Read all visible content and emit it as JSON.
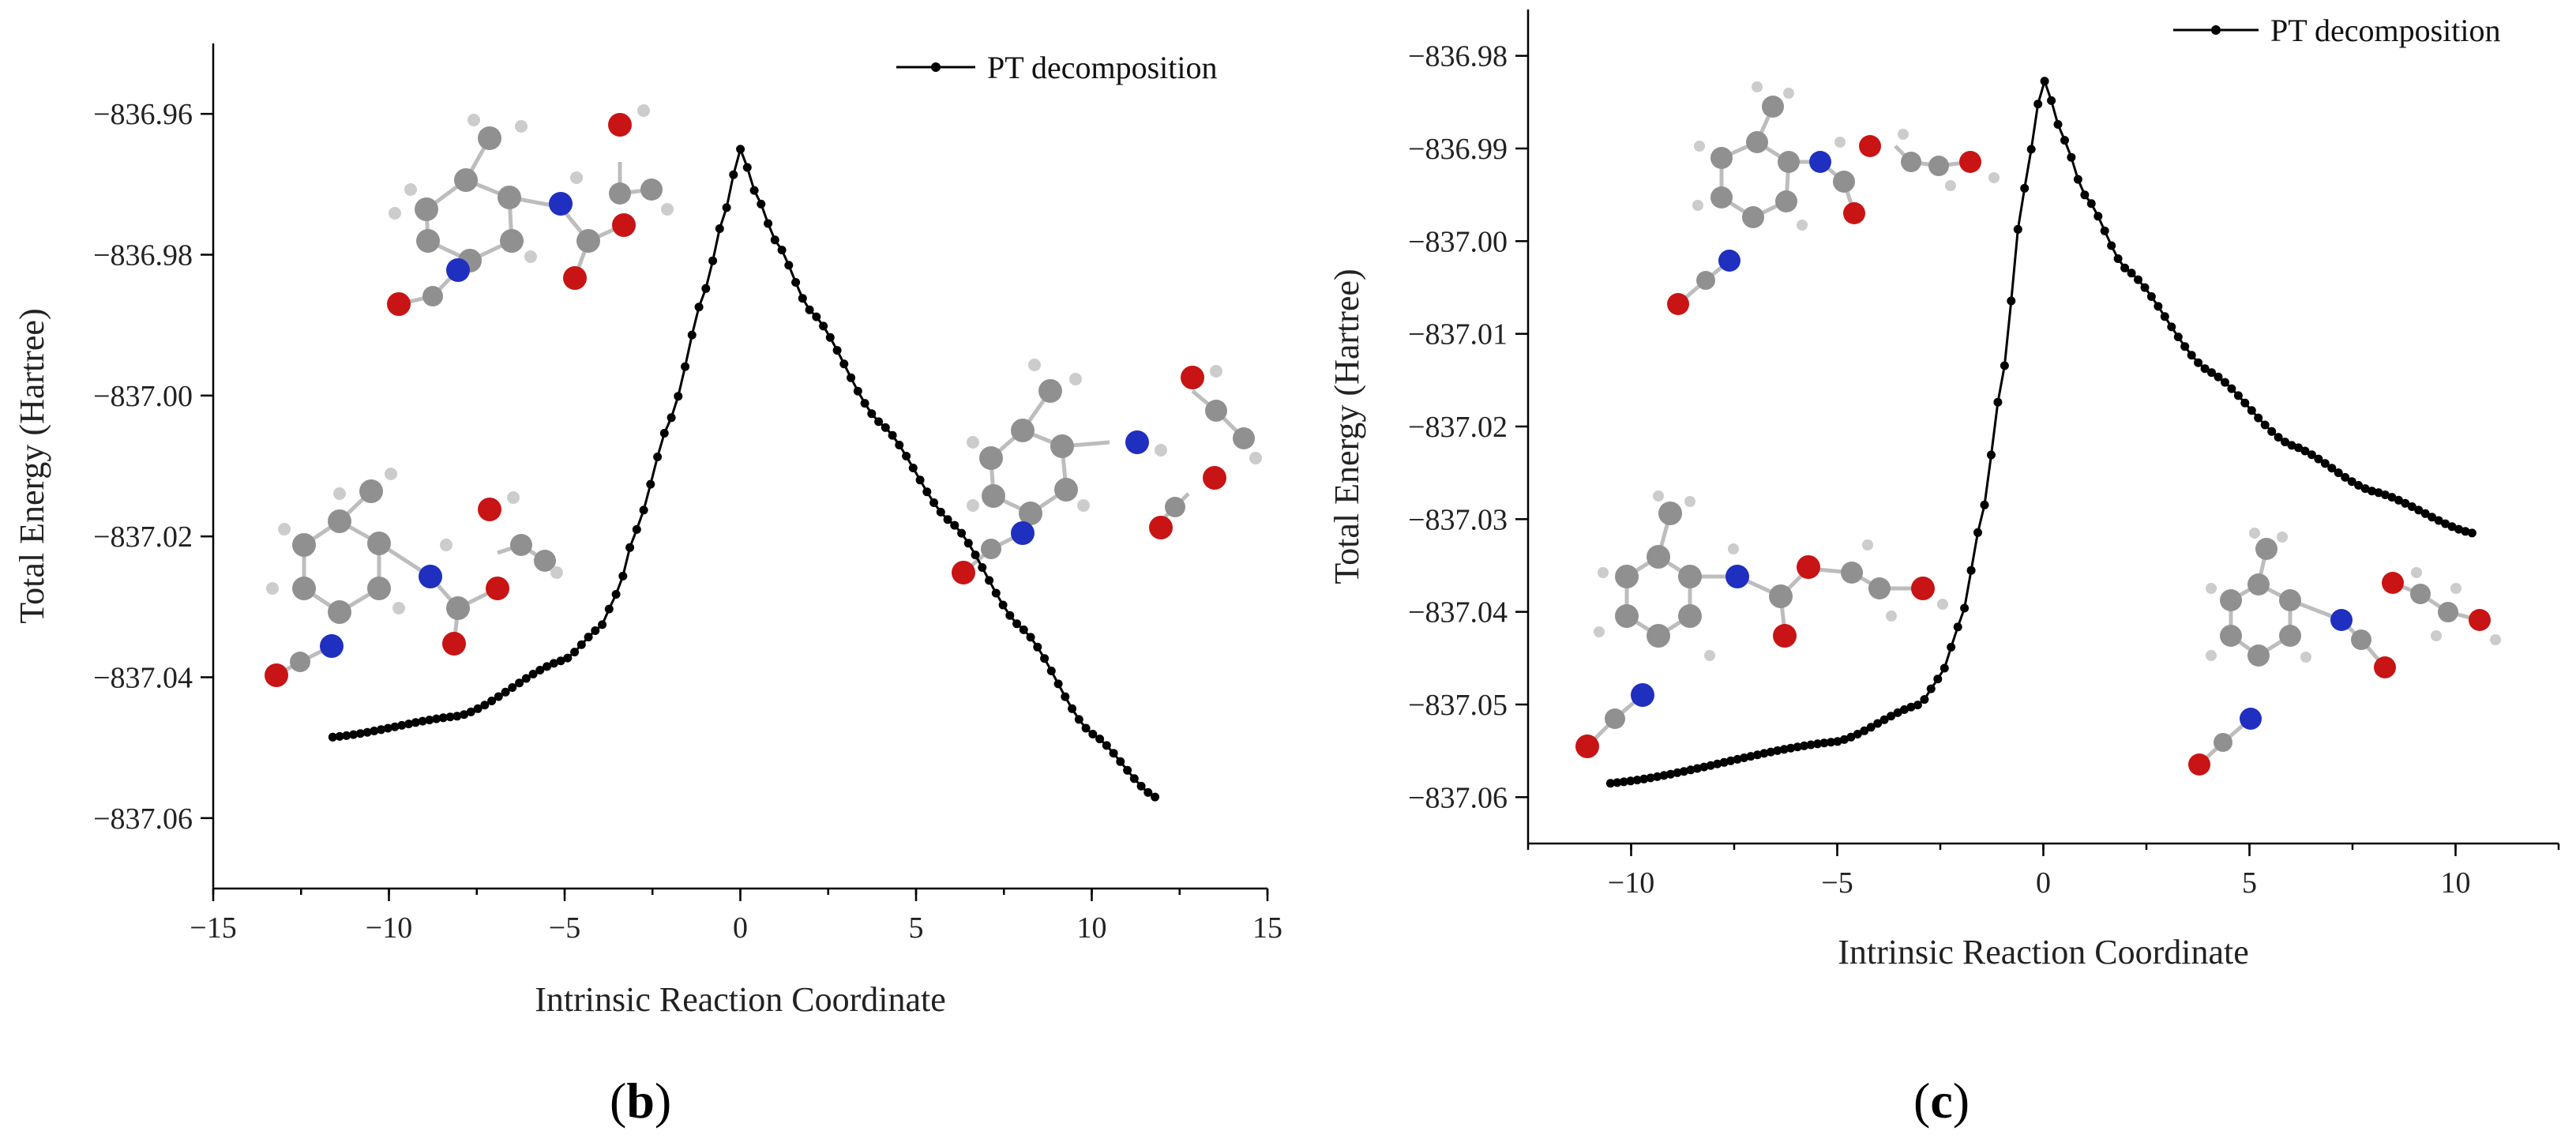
{
  "chart_data": [
    {
      "panel": "b",
      "type": "line",
      "title": "",
      "xlabel": "Intrinsic Reaction Coordinate",
      "ylabel": "Total Energy (Hartree)",
      "xlim": [
        -15,
        15
      ],
      "ylim": [
        -837.07,
        -836.95
      ],
      "xticks": [
        -15,
        -10,
        -5,
        0,
        5,
        10,
        15
      ],
      "yticks": [
        -836.96,
        -836.98,
        -837.0,
        -837.02,
        -837.04,
        -837.06
      ],
      "xtick_labels": [
        "−15",
        "−10",
        "−5",
        "0",
        "5",
        "10",
        "15"
      ],
      "ytick_labels": [
        "−836.96",
        "−836.98",
        "−837.00",
        "−837.02",
        "−837.04",
        "−837.06"
      ],
      "legend_position": "top-right",
      "panel_label_parts": [
        "(",
        "b",
        ")"
      ],
      "series": [
        {
          "name": "PT decomposition",
          "legend_text": "PT decomposition",
          "x_start": -11.6,
          "x_end": 11.8,
          "points": 120,
          "anchors": [
            [
              -11.6,
              -837.0485
            ],
            [
              -8.0,
              -837.0455
            ],
            [
              -5.0,
              -837.0375
            ],
            [
              -4.0,
              -837.033
            ],
            [
              -3.5,
              -837.028
            ],
            [
              -3.0,
              -837.0195
            ],
            [
              -2.0,
              -837.0035
            ],
            [
              -1.0,
              -836.985
            ],
            [
              -0.5,
              -836.975
            ],
            [
              0.0,
              -836.965
            ],
            [
              0.5,
              -836.972
            ],
            [
              1.0,
              -836.978
            ],
            [
              2.0,
              -836.988
            ],
            [
              4.0,
              -837.004
            ],
            [
              6.0,
              -837.018
            ],
            [
              8.0,
              -837.033
            ],
            [
              10.0,
              -837.048
            ],
            [
              11.8,
              -837.057
            ]
          ]
        }
      ]
    },
    {
      "panel": "c",
      "type": "line",
      "title": "",
      "xlabel": "Intrinsic Reaction Coordinate",
      "ylabel": "Total Energy (Hartree)",
      "xlim": [
        -12.5,
        12.5
      ],
      "ylim": [
        -837.065,
        -836.975
      ],
      "xticks": [
        -10,
        -5,
        0,
        5,
        10
      ],
      "yticks": [
        -836.98,
        -836.99,
        -837.0,
        -837.01,
        -837.02,
        -837.03,
        -837.04,
        -837.05,
        -837.06
      ],
      "xtick_labels": [
        "−10",
        "−5",
        "0",
        "5",
        "10"
      ],
      "ytick_labels": [
        "−836.98",
        "−836.99",
        "−837.00",
        "−837.01",
        "−837.02",
        "−837.03",
        "−837.04",
        "−837.05",
        "−837.06"
      ],
      "legend_position": "top-right",
      "panel_label_parts": [
        "(",
        "c",
        ")"
      ],
      "series": [
        {
          "name": "PT decomposition",
          "legend_text": "PT decomposition",
          "x_start": -10.5,
          "x_end": 10.4,
          "points": 130,
          "anchors": [
            [
              -10.5,
              -837.0585
            ],
            [
              -5.0,
              -837.054
            ],
            [
              -3.0,
              -837.05
            ],
            [
              -2.5,
              -837.047
            ],
            [
              -2.0,
              -837.041
            ],
            [
              -1.5,
              -837.03
            ],
            [
              -1.0,
              -837.015
            ],
            [
              -0.5,
              -836.995
            ],
            [
              0.0,
              -836.9825
            ],
            [
              0.5,
              -836.989
            ],
            [
              1.0,
              -836.995
            ],
            [
              2.0,
              -837.003
            ],
            [
              4.0,
              -837.014
            ],
            [
              6.0,
              -837.022
            ],
            [
              8.0,
              -837.027
            ],
            [
              10.4,
              -837.0315
            ]
          ]
        }
      ]
    }
  ]
}
